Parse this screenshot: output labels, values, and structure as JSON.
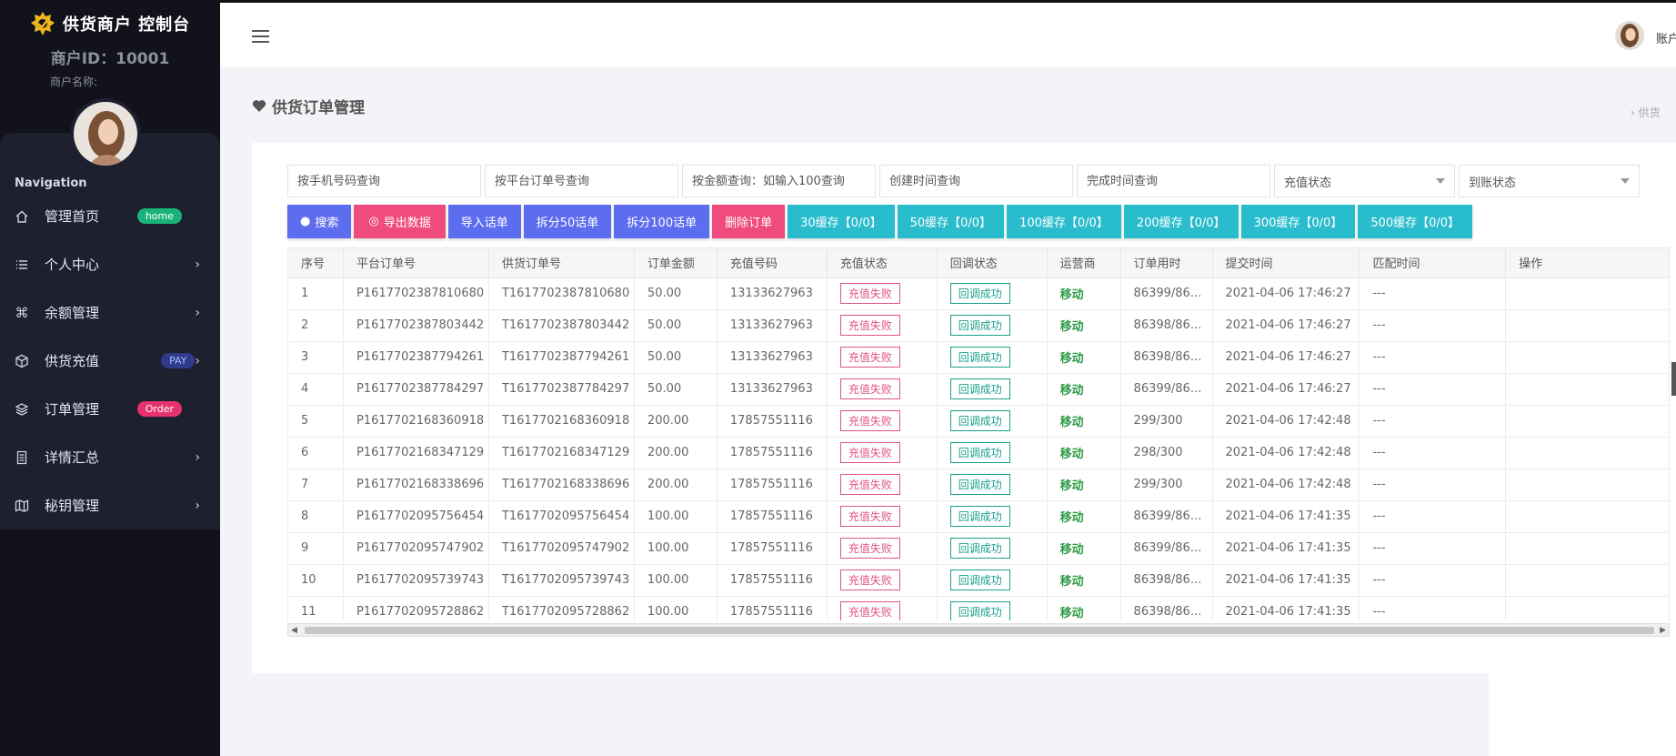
{
  "sidebar": {
    "brand_title": "供货商户 控制台",
    "merchant_id": "商户ID：10001",
    "merchant_name": "商户名称:",
    "nav_heading": "Navigation",
    "items": [
      {
        "label": "管理首页",
        "icon": "home-icon",
        "badge": "home"
      },
      {
        "label": "个人中心",
        "icon": "list-icon"
      },
      {
        "label": "余额管理",
        "icon": "command-icon"
      },
      {
        "label": "供货充值",
        "icon": "cube-icon",
        "badge": "PAY"
      },
      {
        "label": "订单管理",
        "icon": "layers-icon",
        "badge": "Order"
      },
      {
        "label": "详情汇总",
        "icon": "document-icon"
      },
      {
        "label": "秘钥管理",
        "icon": "map-icon"
      }
    ]
  },
  "header": {
    "user_text": "账户"
  },
  "page": {
    "title": "供货订单管理",
    "breadcrumb": "› 供货"
  },
  "filters": {
    "phone": "按手机号码查询",
    "platform_order": "按平台订单号查询",
    "amount": "按金额查询：如输入100查询",
    "created": "创建时间查询",
    "finished": "完成时间查询",
    "recharge_status": "充值状态",
    "arrival_status": "到账状态"
  },
  "actions": {
    "search": "搜索",
    "export": "导出数据",
    "import": "导入话单",
    "split50": "拆分50话单",
    "split100": "拆分100话单",
    "delete": "删除订单",
    "cache30": "30缓存【0/0】",
    "cache50": "50缓存【0/0】",
    "cache100": "100缓存【0/0】",
    "cache200": "200缓存【0/0】",
    "cache300": "300缓存【0/0】",
    "cache500": "500缓存【0/0】"
  },
  "table": {
    "columns": [
      "序号",
      "平台订单号",
      "供货订单号",
      "订单金额",
      "充值号码",
      "充值状态",
      "回调状态",
      "运营商",
      "订单用时",
      "提交时间",
      "匹配时间",
      "操作"
    ],
    "rows": [
      {
        "no": "1",
        "platform": "P1617702387810680",
        "supply": "T1617702387810680",
        "amount": "50.00",
        "phone": "13133627963",
        "recharge": "充值失败",
        "callback": "回调成功",
        "operator": "移动",
        "duration": "86399/86...",
        "submit": "2021-04-06 17:46:27",
        "match": "---"
      },
      {
        "no": "2",
        "platform": "P1617702387803442",
        "supply": "T1617702387803442",
        "amount": "50.00",
        "phone": "13133627963",
        "recharge": "充值失败",
        "callback": "回调成功",
        "operator": "移动",
        "duration": "86398/86...",
        "submit": "2021-04-06 17:46:27",
        "match": "---"
      },
      {
        "no": "3",
        "platform": "P1617702387794261",
        "supply": "T1617702387794261",
        "amount": "50.00",
        "phone": "13133627963",
        "recharge": "充值失败",
        "callback": "回调成功",
        "operator": "移动",
        "duration": "86398/86...",
        "submit": "2021-04-06 17:46:27",
        "match": "---"
      },
      {
        "no": "4",
        "platform": "P1617702387784297",
        "supply": "T1617702387784297",
        "amount": "50.00",
        "phone": "13133627963",
        "recharge": "充值失败",
        "callback": "回调成功",
        "operator": "移动",
        "duration": "86399/86...",
        "submit": "2021-04-06 17:46:27",
        "match": "---"
      },
      {
        "no": "5",
        "platform": "P1617702168360918",
        "supply": "T1617702168360918",
        "amount": "200.00",
        "phone": "17857551116",
        "recharge": "充值失败",
        "callback": "回调成功",
        "operator": "移动",
        "duration": "299/300",
        "submit": "2021-04-06 17:42:48",
        "match": "---"
      },
      {
        "no": "6",
        "platform": "P1617702168347129",
        "supply": "T1617702168347129",
        "amount": "200.00",
        "phone": "17857551116",
        "recharge": "充值失败",
        "callback": "回调成功",
        "operator": "移动",
        "duration": "298/300",
        "submit": "2021-04-06 17:42:48",
        "match": "---"
      },
      {
        "no": "7",
        "platform": "P1617702168338696",
        "supply": "T1617702168338696",
        "amount": "200.00",
        "phone": "17857551116",
        "recharge": "充值失败",
        "callback": "回调成功",
        "operator": "移动",
        "duration": "299/300",
        "submit": "2021-04-06 17:42:48",
        "match": "---"
      },
      {
        "no": "8",
        "platform": "P1617702095756454",
        "supply": "T1617702095756454",
        "amount": "100.00",
        "phone": "17857551116",
        "recharge": "充值失败",
        "callback": "回调成功",
        "operator": "移动",
        "duration": "86399/86...",
        "submit": "2021-04-06 17:41:35",
        "match": "---"
      },
      {
        "no": "9",
        "platform": "P1617702095747902",
        "supply": "T1617702095747902",
        "amount": "100.00",
        "phone": "17857551116",
        "recharge": "充值失败",
        "callback": "回调成功",
        "operator": "移动",
        "duration": "86399/86...",
        "submit": "2021-04-06 17:41:35",
        "match": "---"
      },
      {
        "no": "10",
        "platform": "P1617702095739743",
        "supply": "T1617702095739743",
        "amount": "100.00",
        "phone": "17857551116",
        "recharge": "充值失败",
        "callback": "回调成功",
        "operator": "移动",
        "duration": "86398/86...",
        "submit": "2021-04-06 17:41:35",
        "match": "---"
      },
      {
        "no": "11",
        "platform": "P1617702095728862",
        "supply": "T1617702095728862",
        "amount": "100.00",
        "phone": "17857551116",
        "recharge": "充值失败",
        "callback": "回调成功",
        "operator": "移动",
        "duration": "86398/86...",
        "submit": "2021-04-06 17:41:35",
        "match": "---"
      }
    ]
  },
  "colors": {
    "sidebar_bg": "#11121b",
    "nav_panel_bg": "#1e2030",
    "btn_blue": "#5d6df0",
    "btn_pink": "#ef4b7e",
    "btn_cyan": "#29bccd",
    "fail": "#e0567f",
    "success": "#19a18a",
    "operator": "#2f9a43"
  }
}
